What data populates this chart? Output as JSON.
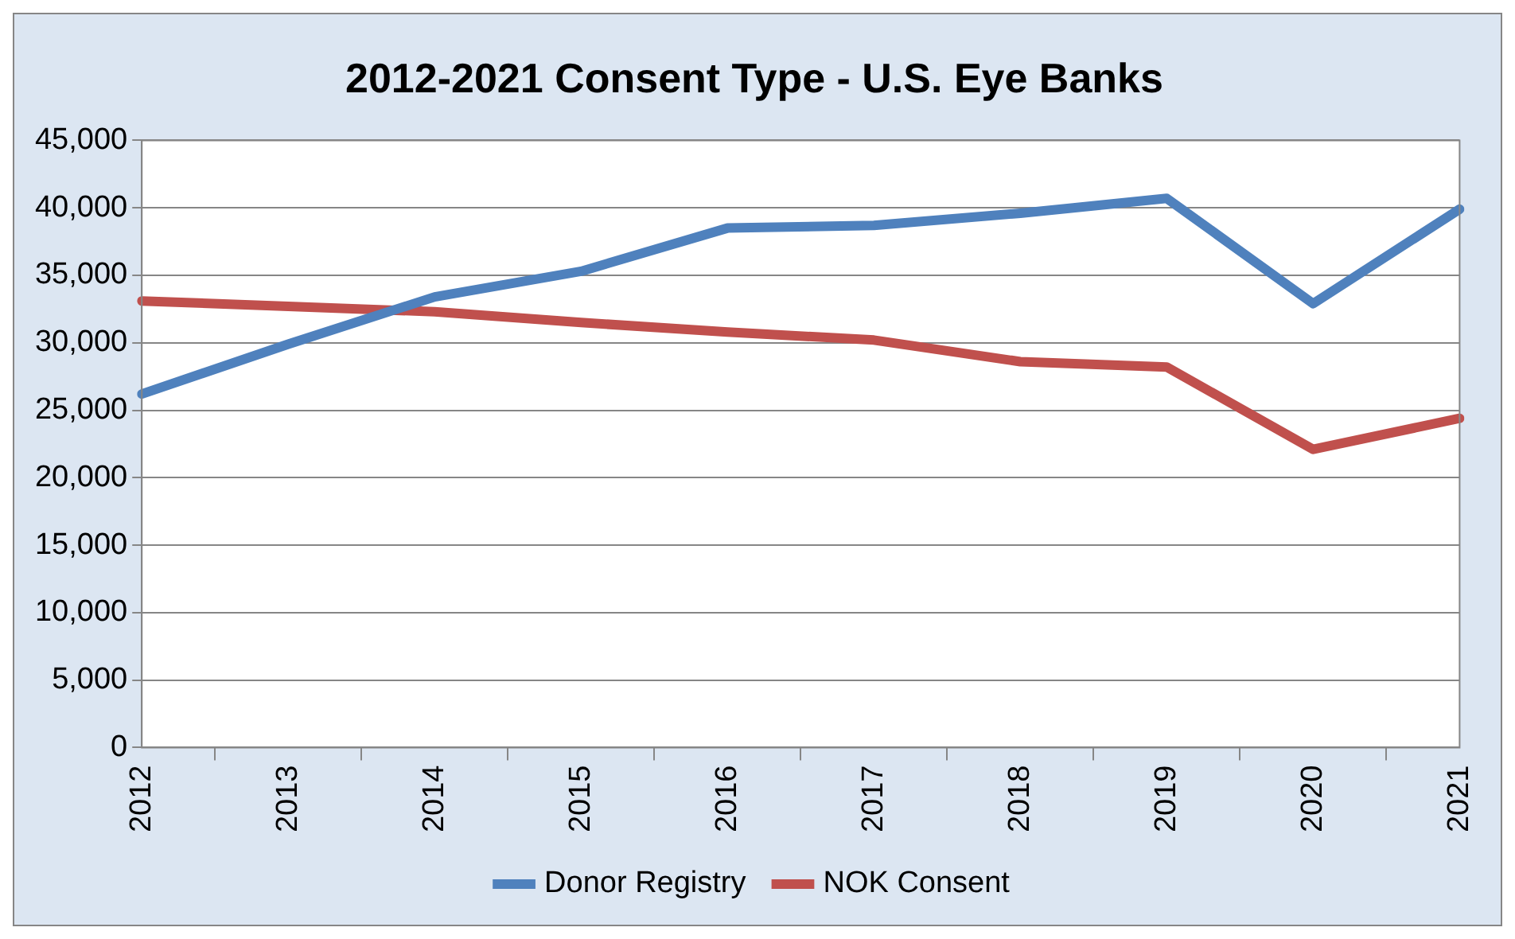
{
  "chart_data": {
    "type": "line",
    "title": "2012-2021 Consent Type - U.S. Eye Banks",
    "categories": [
      "2012",
      "2013",
      "2014",
      "2015",
      "2016",
      "2017",
      "2018",
      "2019",
      "2020",
      "2021"
    ],
    "series": [
      {
        "name": "Donor Registry",
        "color": "#4f81bd",
        "values": [
          26200,
          29900,
          33400,
          35300,
          38500,
          38700,
          39600,
          40700,
          32900,
          39900
        ]
      },
      {
        "name": "NOK Consent",
        "color": "#c0504d",
        "values": [
          33100,
          32700,
          32300,
          31500,
          30800,
          30200,
          28600,
          28200,
          22100,
          24400
        ]
      }
    ],
    "ylim": [
      0,
      45000
    ],
    "yticks": [
      {
        "value": 0,
        "label": "0"
      },
      {
        "value": 5000,
        "label": "5,000"
      },
      {
        "value": 10000,
        "label": "10,000"
      },
      {
        "value": 15000,
        "label": "15,000"
      },
      {
        "value": 20000,
        "label": "20,000"
      },
      {
        "value": 25000,
        "label": "25,000"
      },
      {
        "value": 30000,
        "label": "30,000"
      },
      {
        "value": 35000,
        "label": "35,000"
      },
      {
        "value": 40000,
        "label": "40,000"
      },
      {
        "value": 45000,
        "label": "45,000"
      }
    ],
    "grid": "y",
    "legend": "bottom",
    "marker": "none",
    "line_style": "solid"
  }
}
